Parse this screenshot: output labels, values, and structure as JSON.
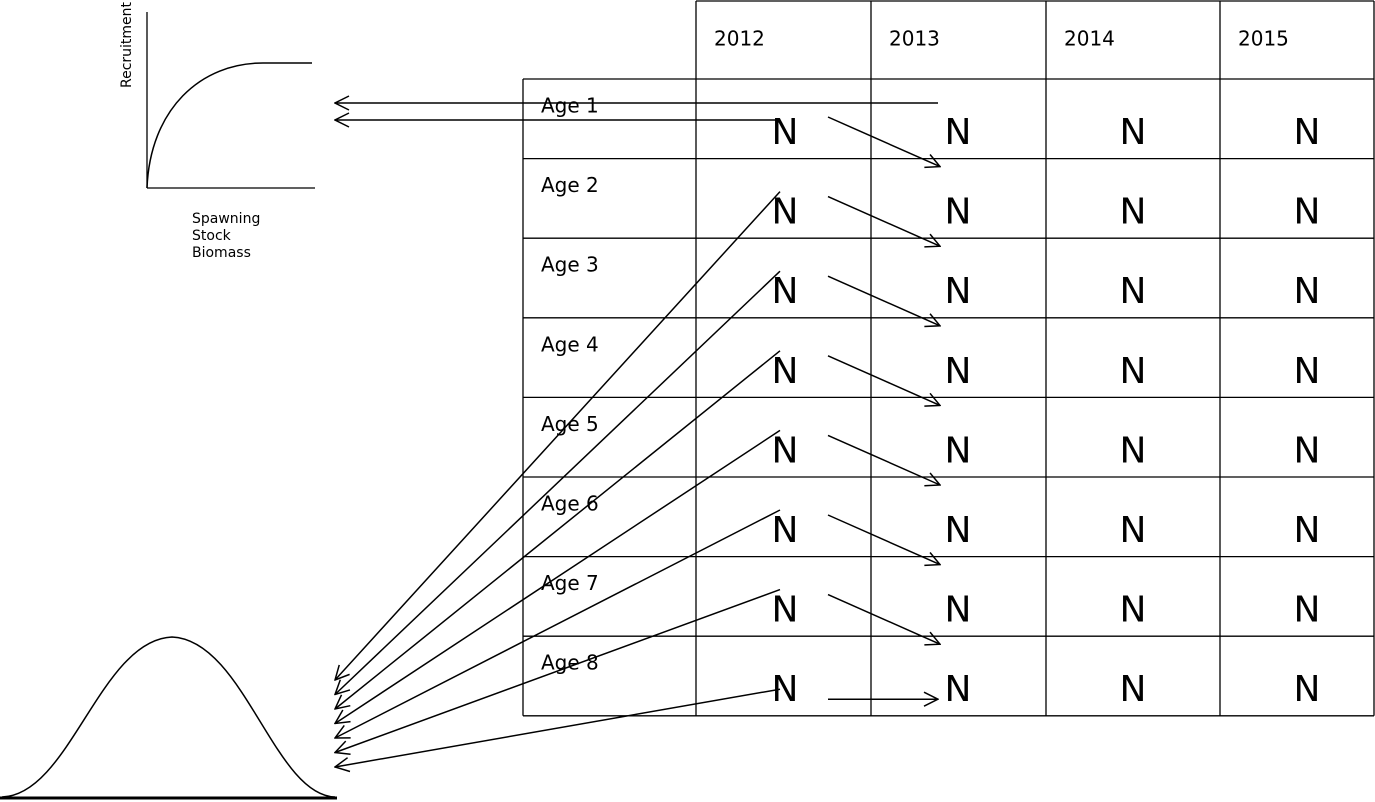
{
  "recruitment_plot": {
    "y_label": "Recruitment",
    "x_label": [
      "Spawning",
      "Stock",
      "Biomass"
    ]
  },
  "table": {
    "header": [
      "2012",
      "2013",
      "2014",
      "2015"
    ],
    "rows": [
      {
        "label": "Age 1",
        "cells": [
          "N",
          "N",
          "N",
          "N"
        ]
      },
      {
        "label": "Age 2",
        "cells": [
          "N",
          "N",
          "N",
          "N"
        ]
      },
      {
        "label": "Age 3",
        "cells": [
          "N",
          "N",
          "N",
          "N"
        ]
      },
      {
        "label": "Age 4",
        "cells": [
          "N",
          "N",
          "N",
          "N"
        ]
      },
      {
        "label": "Age 5",
        "cells": [
          "N",
          "N",
          "N",
          "N"
        ]
      },
      {
        "label": "Age 6",
        "cells": [
          "N",
          "N",
          "N",
          "N"
        ]
      },
      {
        "label": "Age 7",
        "cells": [
          "N",
          "N",
          "N",
          "N"
        ]
      },
      {
        "label": "Age 8",
        "cells": [
          "N",
          "N",
          "N",
          "N"
        ]
      }
    ]
  }
}
